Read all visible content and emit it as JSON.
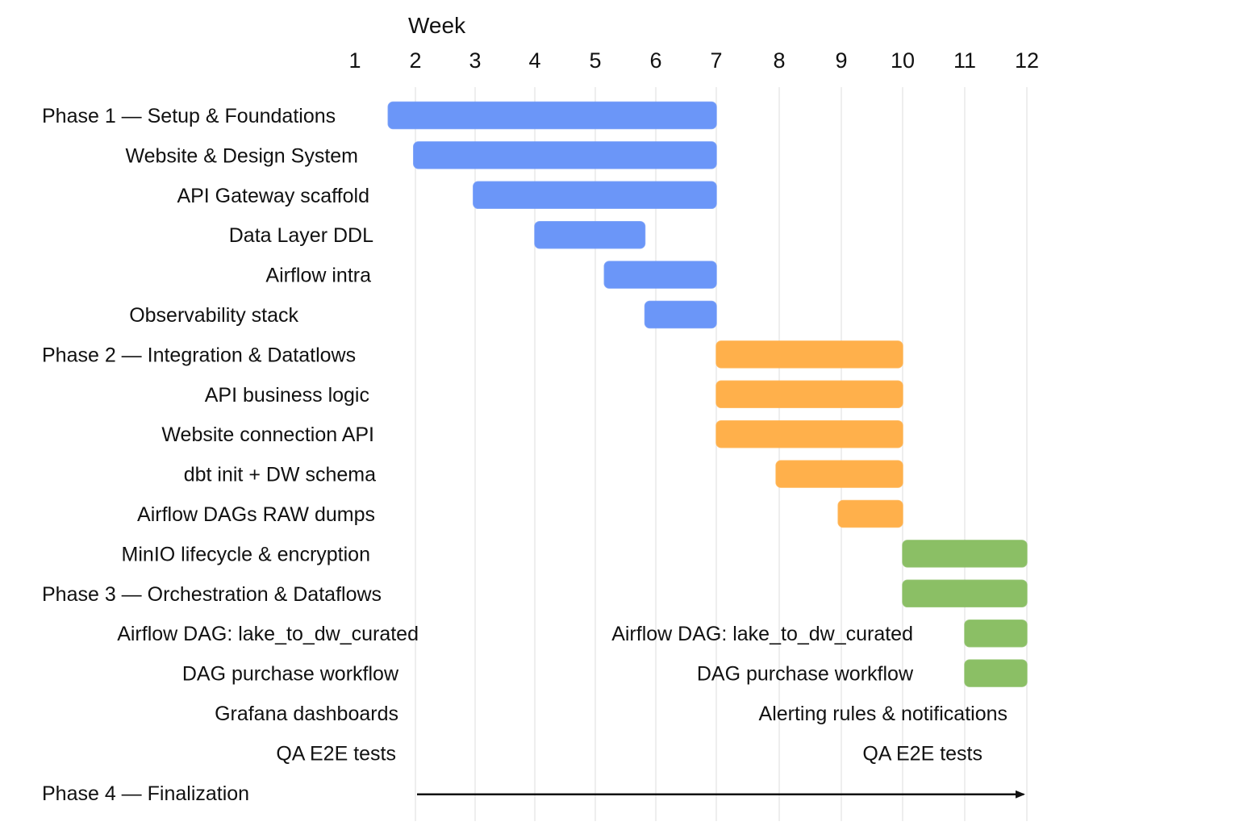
{
  "chart_data": {
    "type": "gantt",
    "xlabel": "Week",
    "x_ticks": [
      "1",
      "2",
      "3",
      "4",
      "5",
      "6",
      "7",
      "8",
      "9",
      "10",
      "11",
      "12"
    ],
    "xlim": [
      1,
      12
    ],
    "colors": {
      "phase1": "#6b96f8",
      "phase2": "#ffb04b",
      "phase3": "#8bbf65",
      "arrow": "#111111"
    },
    "rows": [
      {
        "label": "Phase 1 — Setup & Foundations",
        "align": "left",
        "start": 1.55,
        "end": 7.0,
        "phase": "phase1"
      },
      {
        "label": "Website & Design System",
        "align": "right",
        "start": 1.97,
        "end": 7.0,
        "phase": "phase1"
      },
      {
        "label": "API Gateway scaffold",
        "align": "right",
        "start": 2.97,
        "end": 7.0,
        "phase": "phase1"
      },
      {
        "label": "Data Layer DDL",
        "align": "right",
        "start": 4.0,
        "end": 5.82,
        "phase": "phase1"
      },
      {
        "label": "Airflow intra",
        "align": "right",
        "start": 5.15,
        "end": 7.0,
        "phase": "phase1"
      },
      {
        "label": "Observability stack",
        "align": "right",
        "start": 5.82,
        "end": 7.0,
        "phase": "phase1"
      },
      {
        "label": "Phase 2 — Integration & Datatlows",
        "align": "left",
        "start": 7.0,
        "end": 10.0,
        "phase": "phase2"
      },
      {
        "label": "API business logic",
        "align": "right",
        "start": 7.0,
        "end": 10.0,
        "phase": "phase2"
      },
      {
        "label": "Website connection API",
        "align": "right",
        "start": 7.0,
        "end": 10.0,
        "phase": "phase2"
      },
      {
        "label": "dbt init + DW schema",
        "align": "right",
        "start": 7.95,
        "end": 10.0,
        "phase": "phase2"
      },
      {
        "label": "Airflow DAGs RAW dumps",
        "align": "right",
        "start": 8.95,
        "end": 10.0,
        "phase": "phase2"
      },
      {
        "label": "MinIO lifecycle & encryption",
        "align": "right",
        "start": 10.0,
        "end": 12.0,
        "phase": "phase3"
      },
      {
        "label": "Phase 3 — Orchestration & Dataflows",
        "align": "left",
        "start": 10.0,
        "end": 12.0,
        "phase": "phase3"
      },
      {
        "label": "Airflow DAG: lake_to_dw_curated",
        "align": "right",
        "start": 11.0,
        "end": 12.0,
        "phase": "phase3",
        "note": "Airflow DAG: lake_to_dw_curated"
      },
      {
        "label": "DAG purchase workflow",
        "align": "right",
        "start": 11.0,
        "end": 12.0,
        "phase": "phase3",
        "note": "DAG purchase workflow"
      },
      {
        "label": "Grafana dashboards",
        "align": "right",
        "note": "Alerting rules & notifications"
      },
      {
        "label": "QA E2E tests",
        "align": "right",
        "note": "QA E2E tests"
      },
      {
        "label": "Phase 4 — Finalization",
        "align": "left",
        "arrow": {
          "start": 2.0,
          "end": 12.0
        }
      }
    ]
  }
}
